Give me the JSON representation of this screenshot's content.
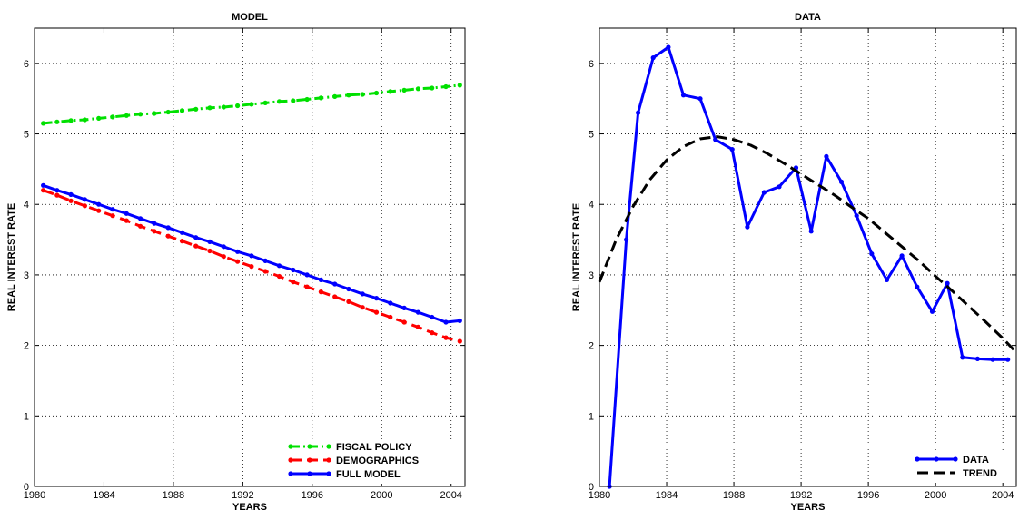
{
  "chart_data": [
    {
      "type": "line",
      "title": "MODEL",
      "xlabel": "YEARS",
      "ylabel": "REAL INTEREST RATE",
      "xlim": [
        1980,
        2004.8
      ],
      "ylim": [
        0,
        6.5
      ],
      "xticks": [
        1980,
        1984,
        1988,
        1992,
        1996,
        2000,
        2004
      ],
      "yticks": [
        0,
        1,
        2,
        3,
        4,
        5,
        6
      ],
      "grid": true,
      "legend_position": "bottom-right",
      "series": [
        {
          "name": "FISCAL POLICY",
          "color": "#00e000",
          "dash": "dash-dot",
          "marker": true,
          "x": [
            1980.5,
            1981.3,
            1982.1,
            1982.9,
            1983.7,
            1984.5,
            1985.3,
            1986.1,
            1986.9,
            1987.7,
            1988.5,
            1989.3,
            1990.1,
            1990.9,
            1991.7,
            1992.5,
            1993.3,
            1994.1,
            1994.9,
            1995.7,
            1996.5,
            1997.3,
            1998.1,
            1998.9,
            1999.7,
            2000.5,
            2001.3,
            2002.1,
            2002.9,
            2003.7,
            2004.5
          ],
          "y": [
            5.15,
            5.17,
            5.19,
            5.2,
            5.22,
            5.24,
            5.26,
            5.28,
            5.29,
            5.31,
            5.33,
            5.35,
            5.37,
            5.38,
            5.4,
            5.42,
            5.44,
            5.46,
            5.47,
            5.49,
            5.51,
            5.53,
            5.55,
            5.56,
            5.58,
            5.6,
            5.62,
            5.64,
            5.65,
            5.67,
            5.69
          ]
        },
        {
          "name": "DEMOGRAPHICS",
          "color": "#ff0000",
          "dash": "dashed",
          "marker": true,
          "x": [
            1980.5,
            1981.3,
            1982.1,
            1982.9,
            1983.7,
            1984.5,
            1985.3,
            1986.1,
            1986.9,
            1987.7,
            1988.5,
            1989.3,
            1990.1,
            1990.9,
            1991.7,
            1992.5,
            1993.3,
            1994.1,
            1994.9,
            1995.7,
            1996.5,
            1997.3,
            1998.1,
            1998.9,
            1999.7,
            2000.5,
            2001.3,
            2002.1,
            2002.9,
            2003.7,
            2004.5
          ],
          "y": [
            4.2,
            4.13,
            4.05,
            3.98,
            3.91,
            3.84,
            3.77,
            3.69,
            3.62,
            3.55,
            3.48,
            3.41,
            3.34,
            3.26,
            3.19,
            3.12,
            3.05,
            2.98,
            2.9,
            2.83,
            2.76,
            2.69,
            2.62,
            2.54,
            2.47,
            2.4,
            2.33,
            2.26,
            2.18,
            2.11,
            2.06
          ]
        },
        {
          "name": "FULL MODEL",
          "color": "#0000ff",
          "dash": "solid",
          "marker": true,
          "x": [
            1980.5,
            1981.3,
            1982.1,
            1982.9,
            1983.7,
            1984.5,
            1985.3,
            1986.1,
            1986.9,
            1987.7,
            1988.5,
            1989.3,
            1990.1,
            1990.9,
            1991.7,
            1992.5,
            1993.3,
            1994.1,
            1994.9,
            1995.7,
            1996.5,
            1997.3,
            1998.1,
            1998.9,
            1999.7,
            2000.5,
            2001.3,
            2002.1,
            2002.9,
            2003.7,
            2004.5
          ],
          "y": [
            4.27,
            4.2,
            4.14,
            4.07,
            4.0,
            3.93,
            3.87,
            3.8,
            3.73,
            3.67,
            3.6,
            3.53,
            3.47,
            3.4,
            3.33,
            3.27,
            3.2,
            3.13,
            3.07,
            3.0,
            2.93,
            2.87,
            2.8,
            2.73,
            2.67,
            2.6,
            2.53,
            2.47,
            2.4,
            2.33,
            2.35
          ]
        }
      ]
    },
    {
      "type": "line",
      "title": "DATA",
      "xlabel": "YEARS",
      "ylabel": "REAL INTEREST RATE",
      "xlim": [
        1980,
        2004.8
      ],
      "ylim": [
        0,
        6.5
      ],
      "xticks": [
        1980,
        1984,
        1988,
        1992,
        1996,
        2000,
        2004
      ],
      "yticks": [
        0,
        1,
        2,
        3,
        4,
        5,
        6
      ],
      "grid": true,
      "legend_position": "bottom-right",
      "series": [
        {
          "name": "DATA",
          "color": "#0000ff",
          "dash": "solid",
          "marker": true,
          "x": [
            1980.6,
            1981.6,
            1982.3,
            1983.2,
            1984.1,
            1985.0,
            1986.0,
            1986.9,
            1987.9,
            1988.8,
            1989.8,
            1990.7,
            1991.7,
            1992.6,
            1993.5,
            1994.4,
            1995.3,
            1996.2,
            1997.1,
            1998.0,
            1998.9,
            1999.8,
            2000.7,
            2001.6,
            2002.5,
            2003.4,
            2004.3
          ],
          "y": [
            0.0,
            3.5,
            5.3,
            6.08,
            6.23,
            5.55,
            5.5,
            4.92,
            4.78,
            3.68,
            4.17,
            4.25,
            4.52,
            3.62,
            4.68,
            4.32,
            3.84,
            3.3,
            2.93,
            3.27,
            2.83,
            2.48,
            2.88,
            1.83,
            1.81,
            1.8,
            1.8
          ]
        },
        {
          "name": "TREND",
          "color": "#000000",
          "dash": "dashed",
          "marker": false,
          "x": [
            1980.0,
            1981.0,
            1982.0,
            1983.0,
            1984.0,
            1985.0,
            1986.0,
            1987.0,
            1988.0,
            1989.0,
            1990.0,
            1991.0,
            1992.0,
            1993.0,
            1994.0,
            1995.0,
            1996.0,
            1997.0,
            1998.0,
            1999.0,
            2000.0,
            2001.0,
            2002.0,
            2003.0,
            2004.0,
            2004.8
          ],
          "y": [
            2.9,
            3.5,
            3.97,
            4.35,
            4.63,
            4.82,
            4.93,
            4.96,
            4.92,
            4.84,
            4.72,
            4.58,
            4.43,
            4.28,
            4.13,
            3.96,
            3.8,
            3.6,
            3.4,
            3.2,
            2.98,
            2.77,
            2.55,
            2.33,
            2.1,
            1.9
          ]
        }
      ]
    }
  ]
}
